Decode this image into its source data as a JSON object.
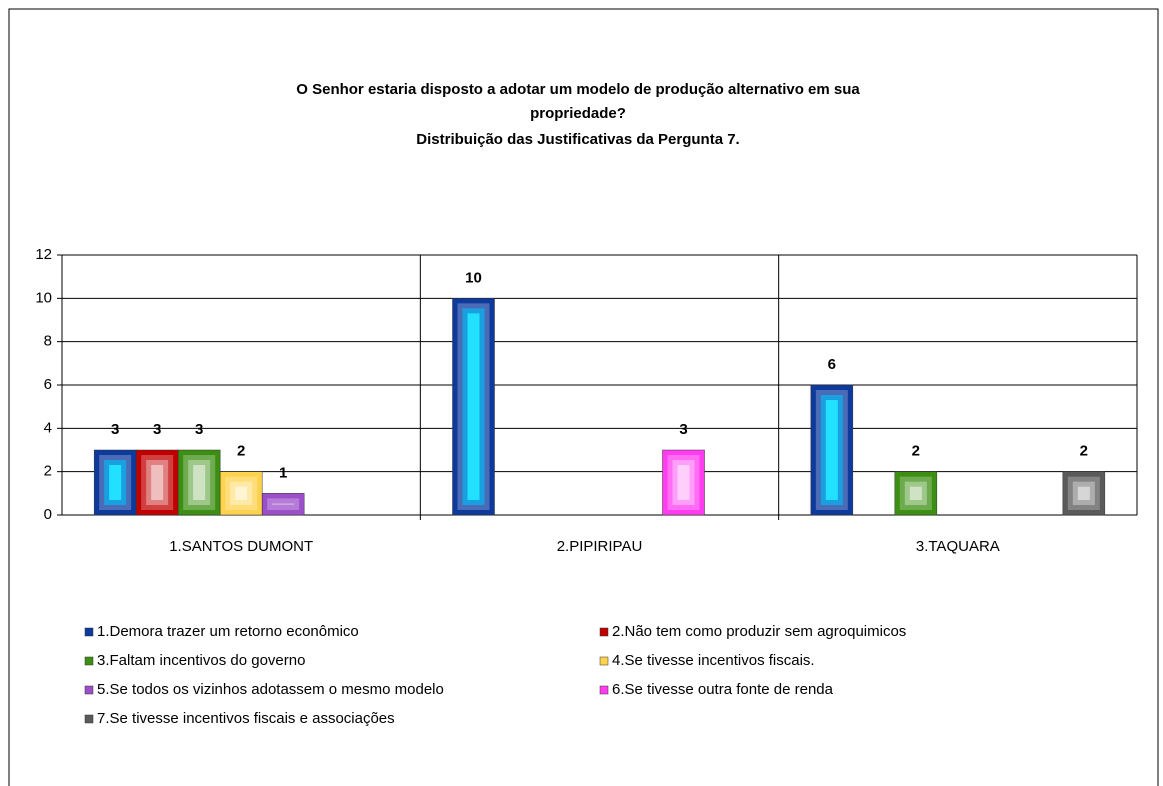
{
  "chart_data": {
    "type": "bar",
    "title": [
      "O Senhor estaria disposto a adotar um modelo de produção alternativo em sua",
      "propriedade?",
      "Distribuição das Justificativas da Pergunta 7."
    ],
    "categories": [
      "1.SANTOS DUMONT",
      "2.PIPIRIPAU",
      "3.TAQUARA"
    ],
    "series": [
      {
        "name": "1.Demora trazer um retorno econômico",
        "color": "#0d3a9c",
        "values": [
          3,
          10,
          6
        ]
      },
      {
        "name": "2.Não tem como produzir sem agroquimicos",
        "color": "#c00000",
        "values": [
          3,
          null,
          null
        ]
      },
      {
        "name": "3.Faltam incentivos do governo",
        "color": "#3d8f14",
        "values": [
          3,
          null,
          2
        ]
      },
      {
        "name": "4.Se tivesse incentivos fiscais.",
        "color": "#ffd24d",
        "values": [
          2,
          null,
          null
        ]
      },
      {
        "name": "5.Se todos os vizinhos adotassem o mesmo modelo",
        "color": "#9b4fc9",
        "values": [
          1,
          null,
          null
        ]
      },
      {
        "name": "6.Se tivesse outra fonte de renda",
        "color": "#ff3cf0",
        "values": [
          null,
          3,
          null
        ]
      },
      {
        "name": "7.Se tivesse incentivos fiscais e associações",
        "color": "#5a5a5a",
        "values": [
          null,
          null,
          2
        ]
      }
    ],
    "ylim": [
      0,
      12
    ],
    "yticks": [
      0,
      2,
      4,
      6,
      8,
      10,
      12
    ],
    "grid": true
  }
}
